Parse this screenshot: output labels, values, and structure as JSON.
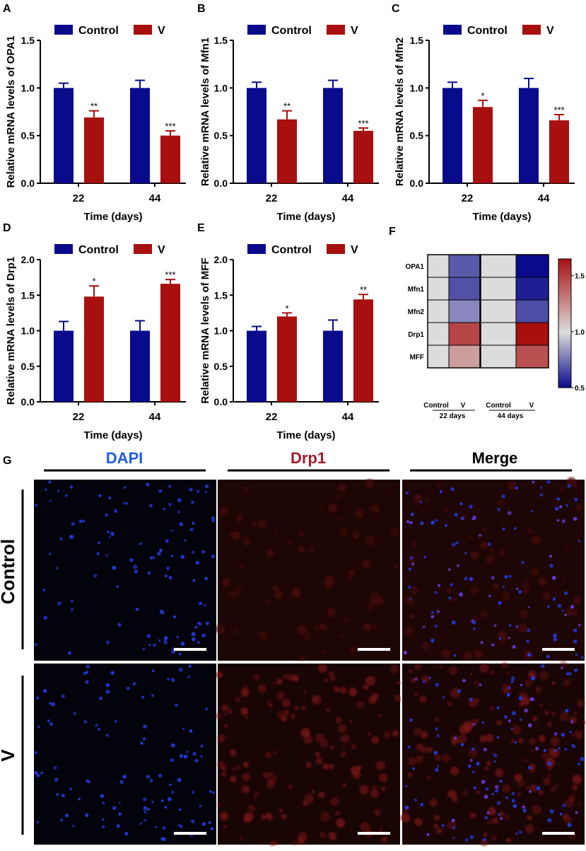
{
  "colors": {
    "control": "#0a0a8c",
    "v": "#a80f0f",
    "dapi": "#1f5fe0",
    "drp1": "#a51b2b",
    "merge": "#000000"
  },
  "legend": {
    "control": "Control",
    "v": "V"
  },
  "xlabel": "Time (days)",
  "chart_data": [
    {
      "id": "A",
      "type": "bar",
      "panel_label": "A",
      "ylabel": "Relative mRNA levels of OPA1",
      "xlabel": "Time (days)",
      "categories": [
        "22",
        "44"
      ],
      "ylim": [
        0,
        1.5
      ],
      "yticks": [
        "0.0",
        "0.5",
        "1.0",
        "1.5"
      ],
      "series": [
        {
          "name": "Control",
          "values": [
            1.0,
            1.0
          ],
          "errors": [
            0.05,
            0.08
          ]
        },
        {
          "name": "V",
          "values": [
            0.69,
            0.5
          ],
          "errors": [
            0.07,
            0.05
          ]
        }
      ],
      "significance": [
        "**",
        "***"
      ]
    },
    {
      "id": "B",
      "type": "bar",
      "panel_label": "B",
      "ylabel": "Relative mRNA levels of Mfn1",
      "xlabel": "Time (days)",
      "categories": [
        "22",
        "44"
      ],
      "ylim": [
        0,
        1.5
      ],
      "yticks": [
        "0.0",
        "0.5",
        "1.0",
        "1.5"
      ],
      "series": [
        {
          "name": "Control",
          "values": [
            1.0,
            1.0
          ],
          "errors": [
            0.06,
            0.08
          ]
        },
        {
          "name": "V",
          "values": [
            0.67,
            0.55
          ],
          "errors": [
            0.09,
            0.03
          ]
        }
      ],
      "significance": [
        "**",
        "***"
      ]
    },
    {
      "id": "C",
      "type": "bar",
      "panel_label": "C",
      "ylabel": "Relative mRNA levels of Mfn2",
      "xlabel": "Time (days)",
      "categories": [
        "22",
        "44"
      ],
      "ylim": [
        0,
        1.5
      ],
      "yticks": [
        "0.0",
        "0.5",
        "1.0",
        "1.5"
      ],
      "series": [
        {
          "name": "Control",
          "values": [
            1.0,
            1.0
          ],
          "errors": [
            0.06,
            0.1
          ]
        },
        {
          "name": "V",
          "values": [
            0.8,
            0.66
          ],
          "errors": [
            0.07,
            0.06
          ]
        }
      ],
      "significance": [
        "*",
        "***"
      ]
    },
    {
      "id": "D",
      "type": "bar",
      "panel_label": "D",
      "ylabel": "Relative mRNA levels of Drp1",
      "xlabel": "Time (days)",
      "categories": [
        "22",
        "44"
      ],
      "ylim": [
        0,
        2.0
      ],
      "yticks": [
        "0.0",
        "0.5",
        "1.0",
        "1.5",
        "2.0"
      ],
      "series": [
        {
          "name": "Control",
          "values": [
            1.0,
            1.0
          ],
          "errors": [
            0.13,
            0.14
          ]
        },
        {
          "name": "V",
          "values": [
            1.48,
            1.66
          ],
          "errors": [
            0.15,
            0.06
          ]
        }
      ],
      "significance": [
        "*",
        "***"
      ]
    },
    {
      "id": "E",
      "type": "bar",
      "panel_label": "E",
      "ylabel": "Relative mRNA levels of MFF",
      "xlabel": "Time (days)",
      "categories": [
        "22",
        "44"
      ],
      "ylim": [
        0,
        2.0
      ],
      "yticks": [
        "0.0",
        "0.5",
        "1.0",
        "1.5",
        "2.0"
      ],
      "series": [
        {
          "name": "Control",
          "values": [
            1.0,
            1.0
          ],
          "errors": [
            0.06,
            0.15
          ]
        },
        {
          "name": "V",
          "values": [
            1.2,
            1.44
          ],
          "errors": [
            0.05,
            0.07
          ]
        }
      ],
      "significance": [
        "*",
        "**"
      ]
    },
    {
      "id": "F",
      "type": "heatmap",
      "panel_label": "F",
      "rows": [
        "OPA1",
        "Mfn1",
        "Mfn2",
        "Drp1",
        "MFF"
      ],
      "columns": [
        "Control",
        "V",
        "Control",
        "V"
      ],
      "groups": [
        "22 days",
        "44 days"
      ],
      "values": [
        [
          1.0,
          0.69,
          1.0,
          0.5
        ],
        [
          1.0,
          0.67,
          1.0,
          0.55
        ],
        [
          1.0,
          0.8,
          1.0,
          0.66
        ],
        [
          1.0,
          1.48,
          1.0,
          1.66
        ],
        [
          1.0,
          1.2,
          1.0,
          1.44
        ]
      ],
      "colorbar": {
        "min": 0.5,
        "max": 1.65,
        "ticks": [
          "0.5",
          "1.0",
          "1.5"
        ]
      }
    }
  ],
  "panel_g": {
    "label": "G",
    "channels": [
      "DAPI",
      "Drp1",
      "Merge"
    ],
    "rows": [
      "Control",
      "V"
    ]
  }
}
